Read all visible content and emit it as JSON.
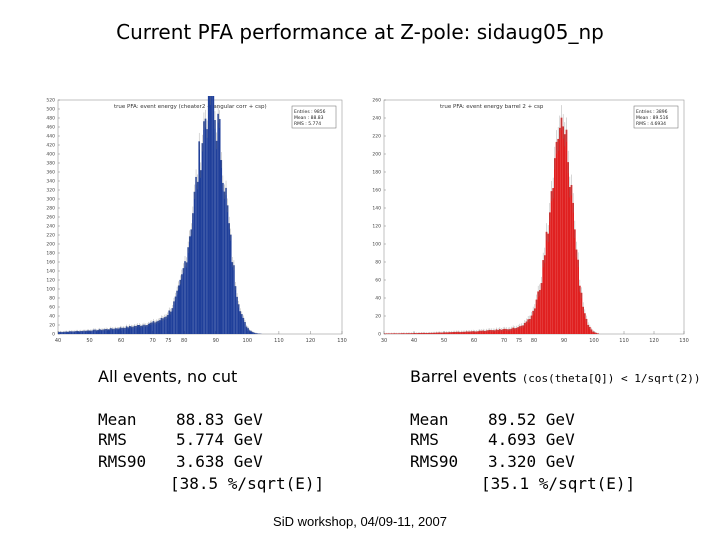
{
  "page": {
    "title": "Current PFA performance at Z-pole: sidaug05_np",
    "footer": "SiD workshop, 04/09-11, 2007"
  },
  "left_panel": {
    "heading": "All events, no cut",
    "mean_label": "Mean",
    "mean_value": "88.83 GeV",
    "rms_label": "RMS",
    "rms_value": "5.774 GeV",
    "rms90_label": "RMS90",
    "rms90_value": "3.638 GeV",
    "resolution": "[38.5 %/sqrt(E)]"
  },
  "right_panel": {
    "heading": "Barrel events",
    "heading_cut": "(cos(theta[Q]) < 1/sqrt(2))",
    "mean_label": "Mean",
    "mean_value": "89.52 GeV",
    "rms_label": "RMS",
    "rms_value": "4.693 GeV",
    "rms90_label": "RMS90",
    "rms90_value": "3.320 GeV",
    "resolution": "[35.1 %/sqrt(E)]"
  },
  "chart_data": [
    {
      "type": "bar",
      "title": "true PFA: event energy (cheater2 + angular corr + csp)",
      "color": "#1f3f9a",
      "xlim": [
        40,
        130
      ],
      "ylim": [
        0,
        520
      ],
      "x_ticks": [
        40,
        50,
        60,
        70,
        75,
        80,
        90,
        100,
        110,
        120,
        130
      ],
      "y_ticks": [
        0,
        20,
        40,
        60,
        80,
        100,
        120,
        140,
        160,
        180,
        200,
        220,
        240,
        260,
        280,
        300,
        320,
        340,
        360,
        380,
        400,
        420,
        440,
        460,
        480,
        500,
        520
      ],
      "peak_x": 89.5,
      "peak_y": 480,
      "sigma_left": 5.5,
      "sigma_right": 4.0,
      "tail_level": 6,
      "stats_box": {
        "entries": "Entries : 9856",
        "mean": "Mean : 88.83",
        "rms": "RMS : 5.774"
      }
    },
    {
      "type": "bar",
      "title": "true PFA: event energy barrel 2 + csp",
      "color": "#e02020",
      "xlim": [
        30,
        130
      ],
      "ylim": [
        0,
        260
      ],
      "x_ticks": [
        30,
        40,
        50,
        60,
        70,
        75,
        80,
        90,
        100,
        110,
        120,
        130
      ],
      "y_ticks": [
        0,
        20,
        40,
        60,
        80,
        100,
        120,
        140,
        160,
        180,
        200,
        220,
        240,
        260
      ],
      "peak_x": 90,
      "peak_y": 215,
      "sigma_left": 4.5,
      "sigma_right": 3.3,
      "tail_level": 3,
      "stats_box": {
        "entries": "Entries : 3896",
        "mean": "Mean : 89.516",
        "rms": "RMS : 4.6934"
      }
    }
  ]
}
